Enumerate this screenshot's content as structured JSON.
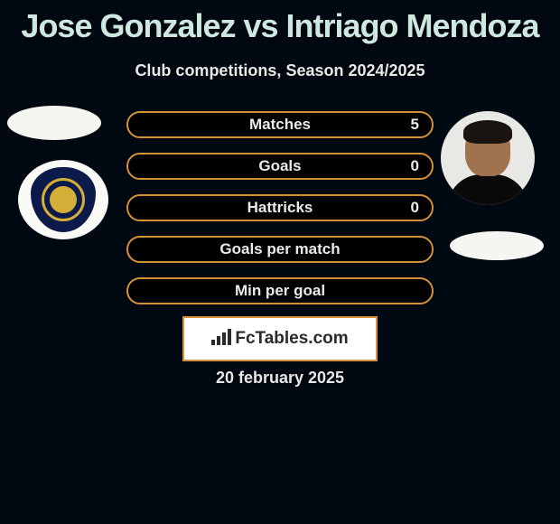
{
  "title": "Jose Gonzalez vs Intriago Mendoza",
  "subtitle": "Club competitions, Season 2024/2025",
  "stats": [
    {
      "label": "Matches",
      "value": "5"
    },
    {
      "label": "Goals",
      "value": "0"
    },
    {
      "label": "Hattricks",
      "value": "0"
    },
    {
      "label": "Goals per match",
      "value": ""
    },
    {
      "label": "Min per goal",
      "value": ""
    }
  ],
  "logo_text": "FcTables.com",
  "date": "20 february 2025",
  "colors": {
    "background": "#000811",
    "title": "#cce8e0",
    "text": "#e8e8e8",
    "border": "#d4903a",
    "stat_bg": "#000000",
    "logo_bg": "#ffffff",
    "badge_blue": "#0b1a4a",
    "badge_gold": "#d4af37",
    "avatar_bg": "#e8e8e5"
  },
  "icon_bars": [
    6,
    10,
    14,
    18
  ]
}
